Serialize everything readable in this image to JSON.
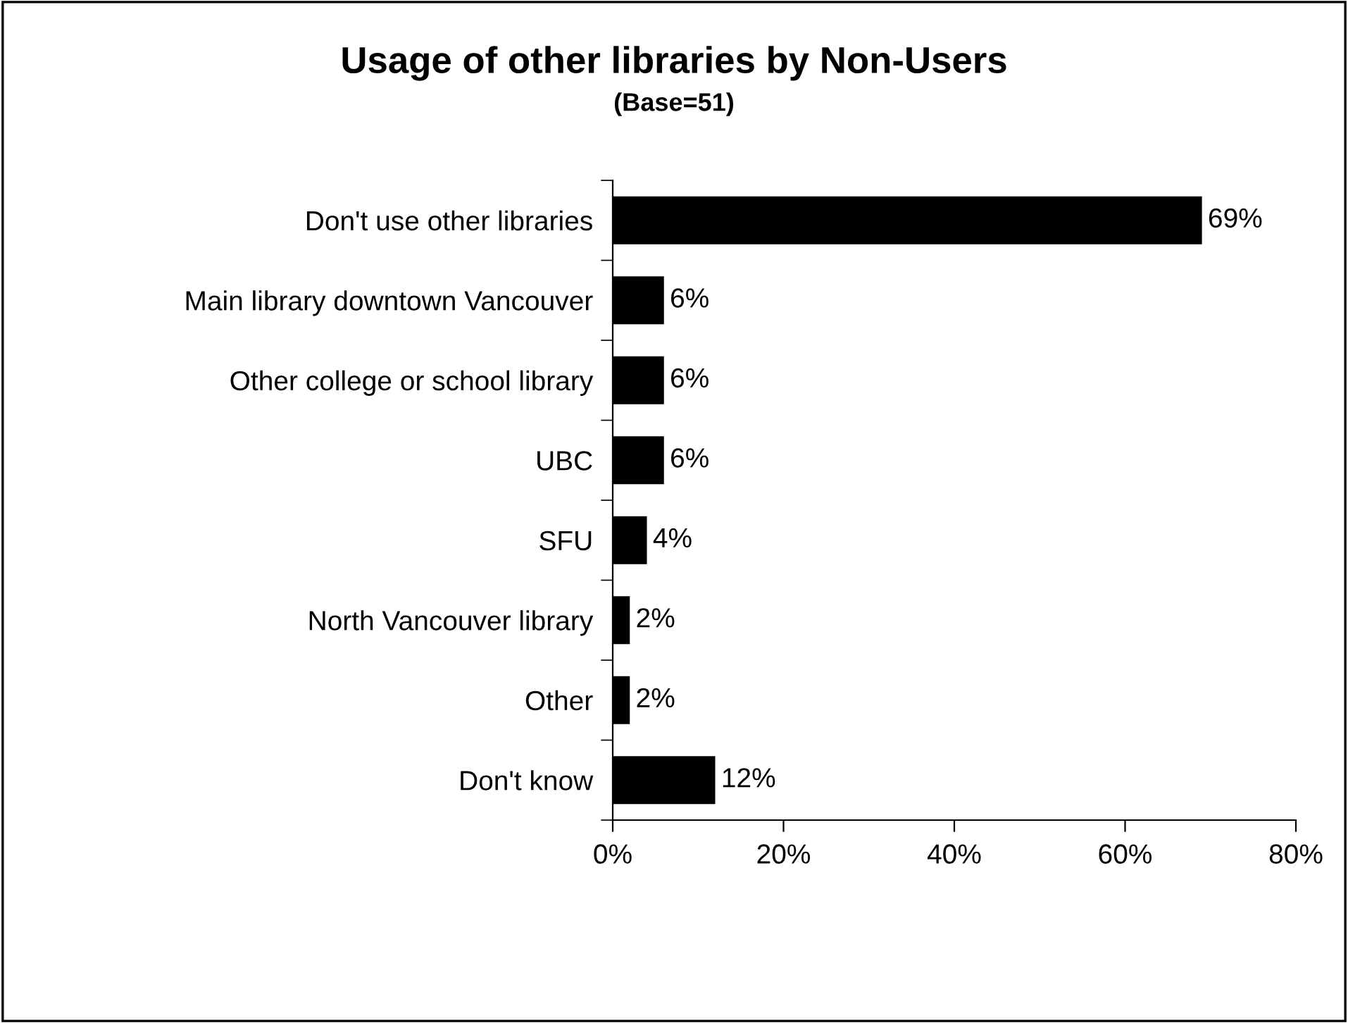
{
  "chart_data": {
    "type": "bar",
    "orientation": "horizontal",
    "title": "Usage of other libraries by Non-Users",
    "subtitle": "(Base=51)",
    "categories": [
      "Don't use other libraries",
      "Main library downtown Vancouver",
      "Other college or school library",
      "UBC",
      "SFU",
      "North Vancouver library",
      "Other",
      "Don't know"
    ],
    "values": [
      69,
      6,
      6,
      6,
      4,
      2,
      2,
      12
    ],
    "value_labels": [
      "69%",
      "6%",
      "6%",
      "6%",
      "4%",
      "2%",
      "2%",
      "12%"
    ],
    "color": "#000000",
    "xlim": [
      0,
      80
    ],
    "xticks": [
      {
        "value": 0,
        "label": "0%"
      },
      {
        "value": 20,
        "label": "20%"
      },
      {
        "value": 40,
        "label": "40%"
      },
      {
        "value": 60,
        "label": "60%"
      },
      {
        "value": 80,
        "label": "80%"
      }
    ],
    "grid": false,
    "legend": false
  }
}
